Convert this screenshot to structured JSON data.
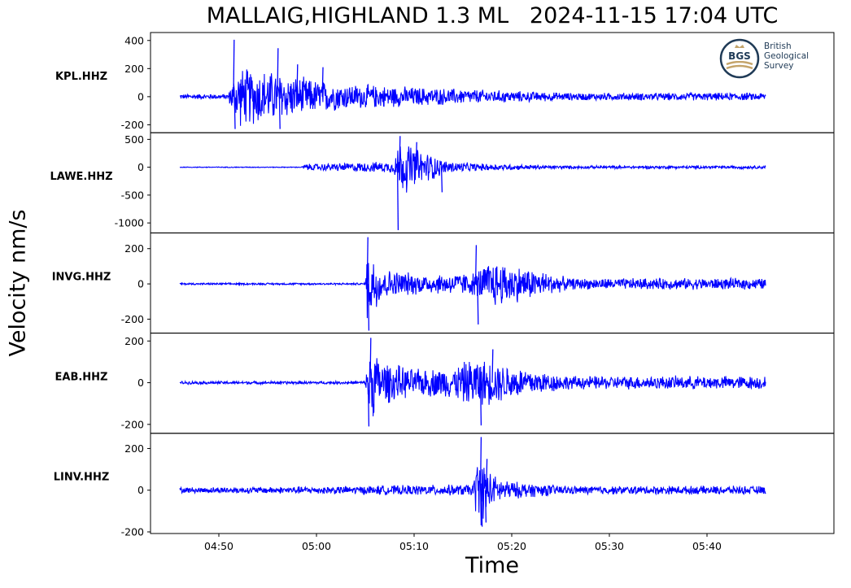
{
  "title": "MALLAIG,HIGHLAND 1.3 ML   2024-11-15 17:04 UTC",
  "ylabel": "Velocity nm/s",
  "xlabel": "Time",
  "logo": {
    "abbrev": "BGS",
    "name": "British Geological Survey",
    "line1": "British",
    "line2": "Geological",
    "line3": "Survey"
  },
  "colors": {
    "trace": "#0000ff",
    "axis": "#000000",
    "logo": "#1f3a56",
    "logo_accent": "#c4a46a"
  },
  "chart_data": {
    "type": "line",
    "series_color": "#0000ff",
    "x_axis": {
      "ticks": [
        "04:50",
        "05:00",
        "05:10",
        "05:20",
        "05:30",
        "05:40"
      ],
      "data_range": [
        "04:46",
        "05:46"
      ],
      "xlim": [
        "04:43",
        "05:53"
      ]
    },
    "panels": [
      {
        "station": "KPL.HHZ",
        "ylim": [
          -245,
          445
        ],
        "yticks": [
          400,
          200,
          0,
          -200
        ],
        "ytick_labels": [
          "400",
          "200",
          "0",
          "-200"
        ],
        "envelope": [
          [
            46,
            20
          ],
          [
            51,
            20
          ],
          [
            51.2,
            100
          ],
          [
            52,
            230
          ],
          [
            55,
            210
          ],
          [
            57,
            170
          ],
          [
            60,
            130
          ],
          [
            63,
            100
          ],
          [
            66,
            90
          ],
          [
            70,
            75
          ],
          [
            75,
            60
          ],
          [
            80,
            45
          ],
          [
            86,
            30
          ]
        ],
        "spikes": [
          {
            "t": 51.5,
            "v": 405
          },
          {
            "t": 51.6,
            "v": -230
          },
          {
            "t": 56.0,
            "v": 345
          },
          {
            "t": 56.2,
            "v": -230
          },
          {
            "t": 58.0,
            "v": 230
          },
          {
            "t": 60.6,
            "v": 210
          }
        ]
      },
      {
        "station": "LAWE.HHZ",
        "ylim": [
          -1150,
          590
        ],
        "yticks": [
          500,
          0,
          -500,
          -1000
        ],
        "ytick_labels": [
          "500",
          "0",
          "-500",
          "-1000"
        ],
        "envelope": [
          [
            46,
            8
          ],
          [
            58.5,
            8
          ],
          [
            58.7,
            60
          ],
          [
            62,
            80
          ],
          [
            68,
            110
          ],
          [
            68.2,
            520
          ],
          [
            69.5,
            480
          ],
          [
            70.5,
            340
          ],
          [
            72,
            250
          ],
          [
            73,
            130
          ],
          [
            76,
            80
          ],
          [
            80,
            55
          ],
          [
            86,
            30
          ]
        ],
        "spikes": [
          {
            "t": 68.3,
            "v": -1130
          },
          {
            "t": 68.5,
            "v": 560
          },
          {
            "t": 70.2,
            "v": 450
          },
          {
            "t": 72.8,
            "v": -450
          }
        ]
      },
      {
        "station": "INVG.HHZ",
        "ylim": [
          -270,
          280
        ],
        "yticks": [
          200,
          0,
          -200
        ],
        "ytick_labels": [
          "200",
          "0",
          "-200"
        ],
        "envelope": [
          [
            46,
            6
          ],
          [
            65,
            6
          ],
          [
            65.2,
            230
          ],
          [
            66,
            170
          ],
          [
            67,
            90
          ],
          [
            71,
            60
          ],
          [
            76,
            70
          ],
          [
            78,
            150
          ],
          [
            80,
            120
          ],
          [
            83,
            80
          ],
          [
            86,
            35
          ]
        ],
        "spikes": [
          {
            "t": 65.2,
            "v": 265
          },
          {
            "t": 65.3,
            "v": -265
          },
          {
            "t": 76.3,
            "v": 220
          },
          {
            "t": 76.5,
            "v": -230
          }
        ]
      },
      {
        "station": "EAB.HHZ",
        "ylim": [
          -235,
          230
        ],
        "yticks": [
          200,
          0,
          -200
        ],
        "ytick_labels": [
          "200",
          "0",
          "-200"
        ],
        "envelope": [
          [
            46,
            8
          ],
          [
            65,
            8
          ],
          [
            65.3,
            200
          ],
          [
            67,
            110
          ],
          [
            70,
            70
          ],
          [
            74,
            80
          ],
          [
            76,
            130
          ],
          [
            78,
            110
          ],
          [
            80,
            90
          ],
          [
            83,
            60
          ],
          [
            86,
            35
          ]
        ],
        "spikes": [
          {
            "t": 65.5,
            "v": 215
          },
          {
            "t": 65.3,
            "v": -210
          },
          {
            "t": 76.8,
            "v": -205
          },
          {
            "t": 78,
            "v": 160
          }
        ]
      },
      {
        "station": "LINV.HHZ",
        "ylim": [
          -200,
          265
        ],
        "yticks": [
          200,
          0,
          -200
        ],
        "ytick_labels": [
          "200",
          "0",
          "-200"
        ],
        "envelope": [
          [
            46,
            15
          ],
          [
            60,
            20
          ],
          [
            68,
            25
          ],
          [
            76,
            30
          ],
          [
            76.6,
            200
          ],
          [
            78,
            80
          ],
          [
            80,
            45
          ],
          [
            86,
            22
          ]
        ],
        "spikes": [
          {
            "t": 76.8,
            "v": 255
          },
          {
            "t": 76.9,
            "v": -175
          },
          {
            "t": 77.4,
            "v": 150
          },
          {
            "t": 77.3,
            "v": -155
          }
        ]
      }
    ]
  }
}
